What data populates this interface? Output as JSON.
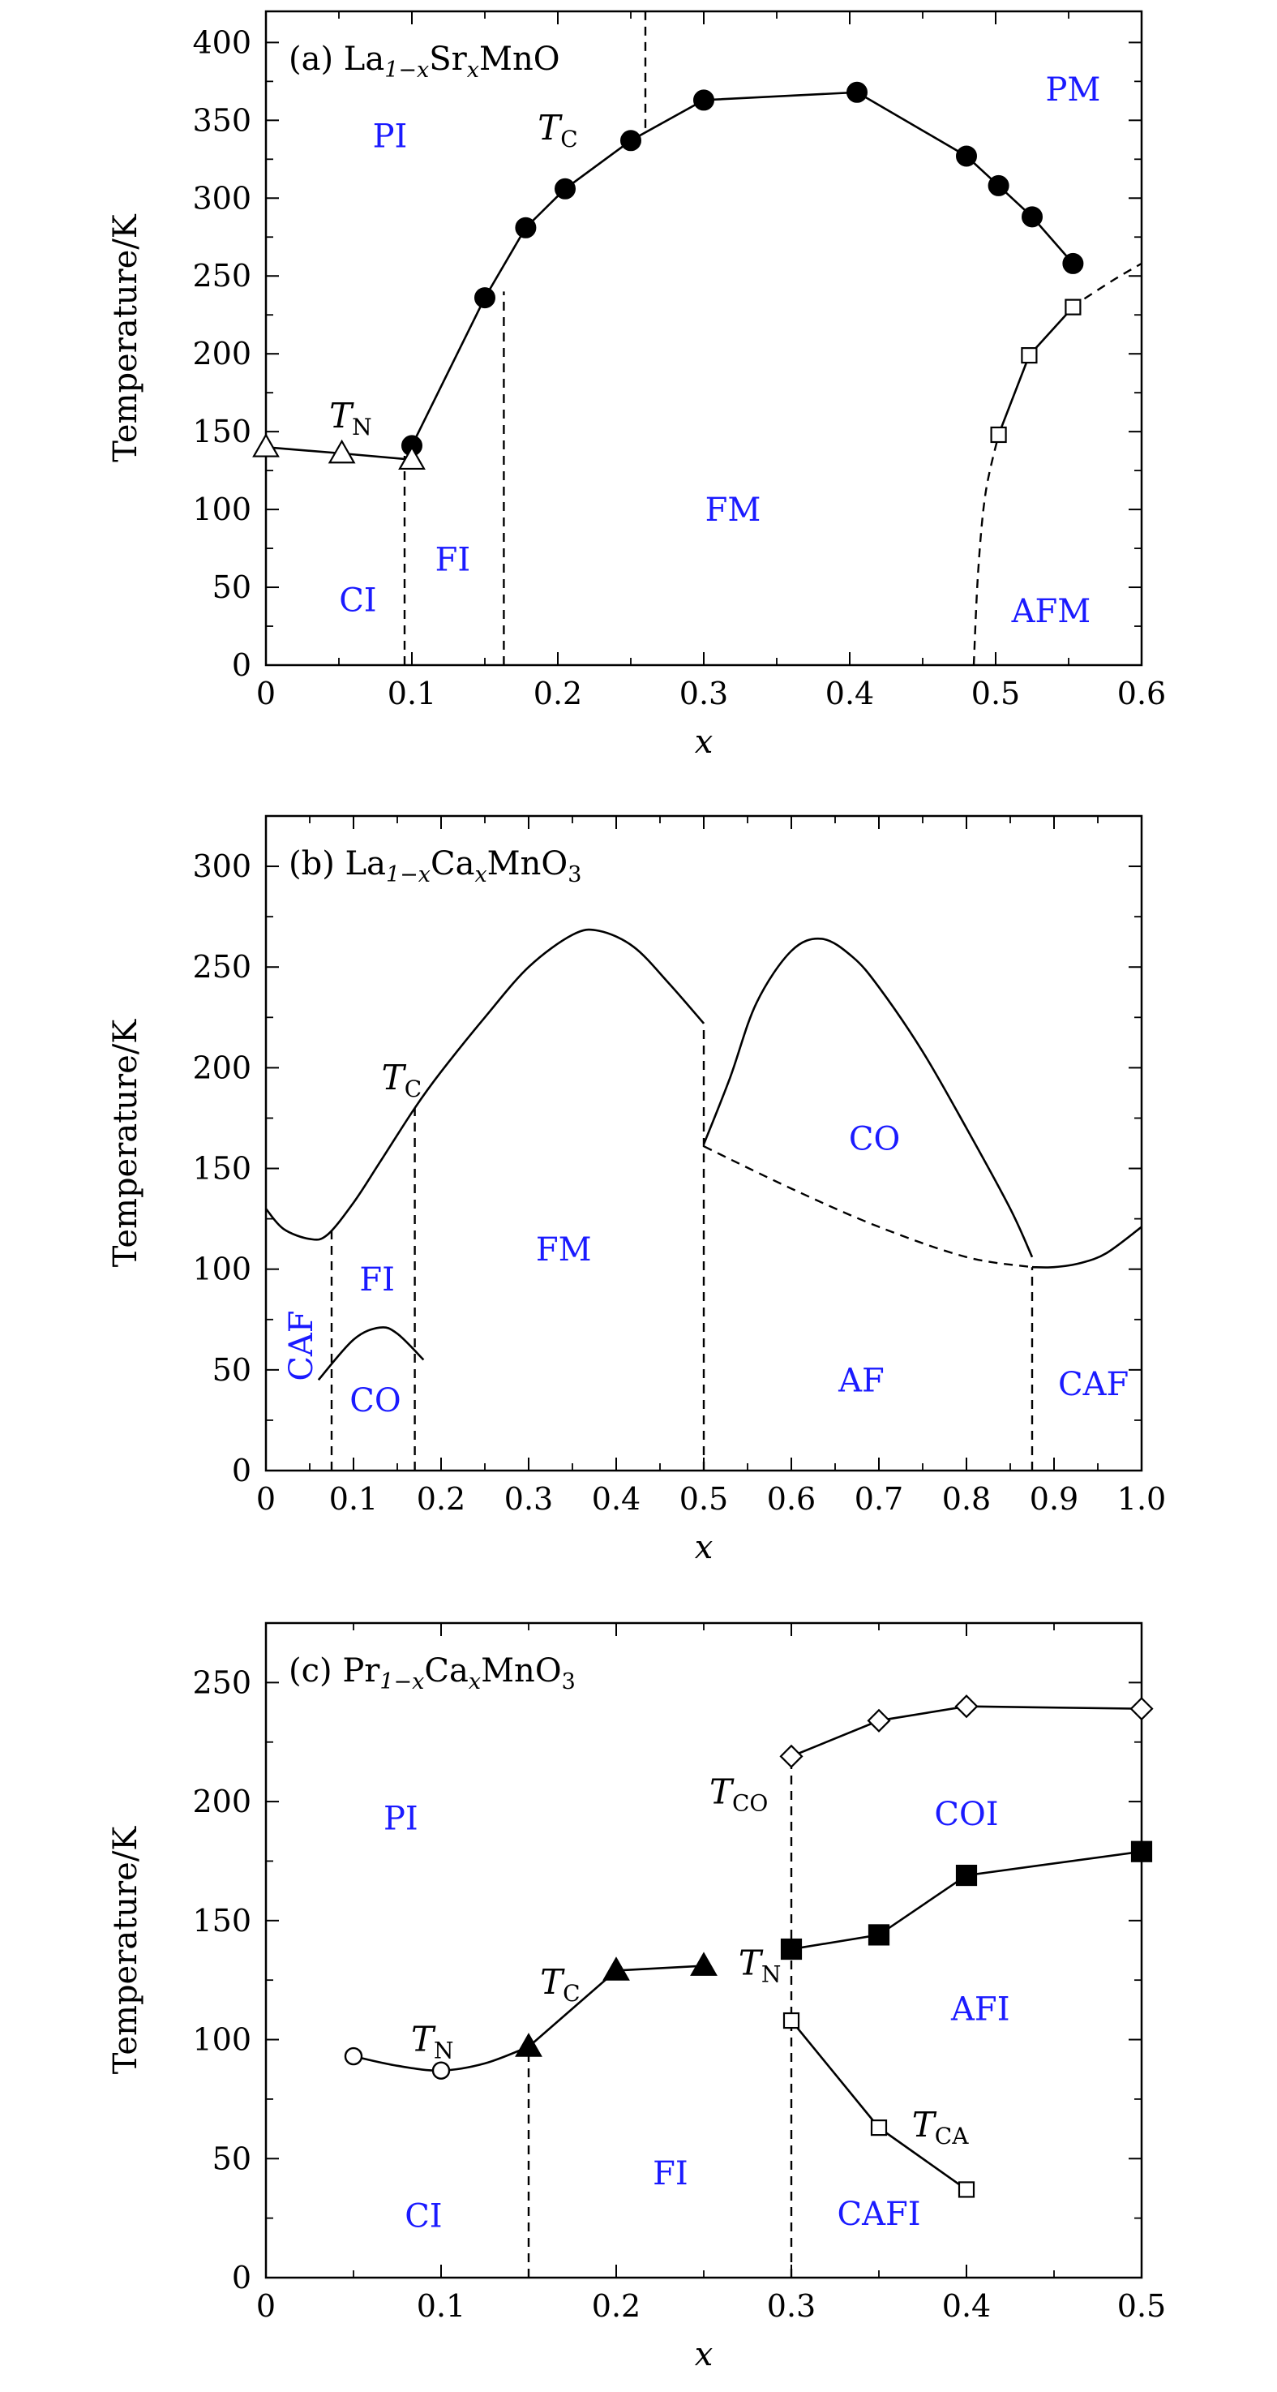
{
  "colors": {
    "axis": "#000000",
    "region_text": "#1a1aff",
    "line": "#000000",
    "background": "#ffffff"
  },
  "chart_data": [
    {
      "type": "line",
      "id": "a",
      "title": "(a) La1−xSrxMnO",
      "title_parts": {
        "prefix": "(a) La",
        "sub1": "1−x",
        "mid": "Sr",
        "sub2": "x",
        "suffix": "MnO"
      },
      "xlabel": "x",
      "ylabel": "Temperature/K",
      "xlim": [
        0,
        0.6
      ],
      "ylim": [
        0,
        420
      ],
      "xticks": [
        0,
        0.1,
        0.2,
        0.3,
        0.4,
        0.5,
        0.6
      ],
      "xtick_labels": [
        "0",
        "0.1",
        "0.2",
        "0.3",
        "0.4",
        "0.5",
        "0.6"
      ],
      "yticks": [
        0,
        50,
        100,
        150,
        200,
        250,
        300,
        350,
        400
      ],
      "ytick_labels": [
        "0",
        "50",
        "100",
        "150",
        "200",
        "250",
        "300",
        "350",
        "400"
      ],
      "series": [
        {
          "marker": "filled-circle",
          "connected": true,
          "x": [
            0.1,
            0.15,
            0.178,
            0.205,
            0.25,
            0.3,
            0.405,
            0.48,
            0.502,
            0.525,
            0.553
          ],
          "y": [
            141,
            236,
            281,
            306,
            337,
            363,
            368,
            327,
            308,
            288,
            258
          ]
        },
        {
          "marker": "open-triangle",
          "connected": true,
          "x": [
            0,
            0.052,
            0.1
          ],
          "y": [
            140,
            136,
            132
          ]
        },
        {
          "marker": "open-square",
          "connected": true,
          "x": [
            0.502,
            0.523,
            0.553
          ],
          "y": [
            148,
            199,
            230
          ]
        }
      ],
      "dashed_curves": [
        {
          "x": [
            0.552,
            0.58,
            0.6
          ],
          "y": [
            230,
            247,
            258
          ]
        },
        {
          "x": [
            0.485,
            0.488,
            0.493,
            0.502
          ],
          "y": [
            0,
            60,
            110,
            148
          ]
        }
      ],
      "dashed_vlines": [
        {
          "x": 0.095,
          "y0": 0,
          "y1": 140
        },
        {
          "x": 0.163,
          "y0": 0,
          "y1": 240
        },
        {
          "x": 0.26,
          "y0": 345,
          "y1": 420
        }
      ],
      "regions": [
        {
          "label": "PI",
          "x": 0.085,
          "y": 340
        },
        {
          "label": "PM",
          "x": 0.553,
          "y": 370
        },
        {
          "label": "FM",
          "x": 0.32,
          "y": 100
        },
        {
          "label": "FI",
          "x": 0.128,
          "y": 68
        },
        {
          "label": "CI",
          "x": 0.063,
          "y": 42
        },
        {
          "label": "AFM",
          "x": 0.538,
          "y": 35
        }
      ],
      "annotations": [
        {
          "main": "T",
          "sub": "C",
          "x": 0.2,
          "y": 345
        },
        {
          "main": "T",
          "sub": "N",
          "x": 0.058,
          "y": 160
        }
      ]
    },
    {
      "type": "line",
      "id": "b",
      "title": "(b) La1−xCaxMnO3",
      "title_parts": {
        "prefix": "(b) La",
        "sub1": "1−x",
        "mid": "Ca",
        "sub2": "x",
        "suffix": "MnO",
        "sub3": "3"
      },
      "xlabel": "x",
      "ylabel": "Temperature/K",
      "xlim": [
        0,
        1.0
      ],
      "ylim": [
        0,
        325
      ],
      "xticks": [
        0,
        0.1,
        0.2,
        0.3,
        0.4,
        0.5,
        0.6,
        0.7,
        0.8,
        0.9,
        1.0
      ],
      "xtick_labels": [
        "0",
        "0.1",
        "0.2",
        "0.3",
        "0.4",
        "0.5",
        "0.6",
        "0.7",
        "0.8",
        "0.9",
        "1.0"
      ],
      "yticks": [
        0,
        50,
        100,
        150,
        200,
        250,
        300
      ],
      "ytick_labels": [
        "0",
        "50",
        "100",
        "150",
        "200",
        "250",
        "300"
      ],
      "series": [],
      "solid_curves": [
        {
          "x": [
            0,
            0.02,
            0.05,
            0.07,
            0.1,
            0.13,
            0.17,
            0.2,
            0.25,
            0.3,
            0.35,
            0.38,
            0.42,
            0.46,
            0.5
          ],
          "y": [
            130,
            120,
            115,
            117,
            133,
            153,
            180,
            198,
            225,
            250,
            266,
            268,
            260,
            242,
            222
          ]
        },
        {
          "x": [
            0.5,
            0.53,
            0.56,
            0.6,
            0.635,
            0.67,
            0.7,
            0.75,
            0.8,
            0.85,
            0.875
          ],
          "y": [
            162,
            195,
            232,
            258,
            264,
            255,
            240,
            208,
            170,
            130,
            106
          ]
        },
        {
          "x": [
            0.875,
            0.9,
            0.93,
            0.96,
            1.0
          ],
          "y": [
            101,
            101,
            103,
            108,
            121
          ]
        },
        {
          "x": [
            0.06,
            0.1,
            0.13,
            0.15,
            0.18
          ],
          "y": [
            45,
            65,
            71,
            68,
            55
          ]
        }
      ],
      "dashed_curves": [
        {
          "x": [
            0.5,
            0.6,
            0.7,
            0.8,
            0.875
          ],
          "y": [
            161,
            140,
            121,
            106,
            101
          ]
        }
      ],
      "dashed_vlines": [
        {
          "x": 0.075,
          "y0": 0,
          "y1": 120
        },
        {
          "x": 0.17,
          "y0": 0,
          "y1": 180
        },
        {
          "x": 0.5,
          "y0": 0,
          "y1": 222
        },
        {
          "x": 0.875,
          "y0": 0,
          "y1": 101
        }
      ],
      "regions": [
        {
          "label": "CO",
          "x": 0.695,
          "y": 165
        },
        {
          "label": "FM",
          "x": 0.34,
          "y": 110
        },
        {
          "label": "FI",
          "x": 0.127,
          "y": 95
        },
        {
          "label": "AF",
          "x": 0.68,
          "y": 45
        },
        {
          "label": "CAF",
          "x": 0.945,
          "y": 43
        },
        {
          "label": "CO",
          "x": 0.125,
          "y": 35
        }
      ],
      "vertical_regions": [
        {
          "label": "CAF",
          "x": 0.04,
          "y": 62
        }
      ],
      "annotations": [
        {
          "main": "T",
          "sub": "C",
          "x": 0.155,
          "y": 195
        }
      ]
    },
    {
      "type": "line",
      "id": "c",
      "title": "(c) Pr1−xCaxMnO3",
      "title_parts": {
        "prefix": "(c) Pr",
        "sub1": "1−x",
        "mid": "Ca",
        "sub2": "x",
        "suffix": "MnO",
        "sub3": "3"
      },
      "xlabel": "x",
      "ylabel": "Temperature/K",
      "xlim": [
        0,
        0.5
      ],
      "ylim": [
        0,
        275
      ],
      "xticks": [
        0,
        0.1,
        0.2,
        0.3,
        0.4,
        0.5
      ],
      "xtick_labels": [
        "0",
        "0.1",
        "0.2",
        "0.3",
        "0.4",
        "0.5"
      ],
      "yticks": [
        0,
        50,
        100,
        150,
        200,
        250
      ],
      "ytick_labels": [
        "0",
        "50",
        "100",
        "150",
        "200",
        "250"
      ],
      "series": [
        {
          "marker": "open-diamond",
          "connected": true,
          "x": [
            0.3,
            0.35,
            0.4,
            0.5
          ],
          "y": [
            219,
            234,
            240,
            239
          ]
        },
        {
          "marker": "filled-square",
          "connected": true,
          "x": [
            0.3,
            0.35,
            0.4,
            0.5
          ],
          "y": [
            138,
            144,
            169,
            179
          ]
        },
        {
          "marker": "filled-triangle",
          "connected": true,
          "x": [
            0.15,
            0.2,
            0.25
          ],
          "y": [
            97,
            129,
            131
          ]
        },
        {
          "marker": "open-square",
          "connected": true,
          "x": [
            0.3,
            0.35,
            0.4
          ],
          "y": [
            108,
            63,
            37
          ]
        },
        {
          "marker": "open-circle",
          "connected": false,
          "x": [
            0.05,
            0.1
          ],
          "y": [
            93,
            87
          ]
        }
      ],
      "solid_curves": [
        {
          "x": [
            0.05,
            0.075,
            0.1,
            0.125,
            0.15
          ],
          "y": [
            93,
            89,
            87,
            90,
            97
          ]
        }
      ],
      "dashed_vlines": [
        {
          "x": 0.15,
          "y0": 0,
          "y1": 97
        },
        {
          "x": 0.3,
          "y0": 0,
          "y1": 219
        }
      ],
      "regions": [
        {
          "label": "PI",
          "x": 0.077,
          "y": 193
        },
        {
          "label": "COI",
          "x": 0.4,
          "y": 195
        },
        {
          "label": "AFI",
          "x": 0.408,
          "y": 113
        },
        {
          "label": "FI",
          "x": 0.231,
          "y": 44
        },
        {
          "label": "CI",
          "x": 0.09,
          "y": 26
        },
        {
          "label": "CAFI",
          "x": 0.35,
          "y": 27
        }
      ],
      "annotations": [
        {
          "main": "T",
          "sub": "CO",
          "x": 0.27,
          "y": 204
        },
        {
          "main": "T",
          "sub": "N",
          "x": 0.282,
          "y": 132
        },
        {
          "main": "T",
          "sub": "C",
          "x": 0.168,
          "y": 124
        },
        {
          "main": "T",
          "sub": "N",
          "x": 0.095,
          "y": 100
        },
        {
          "main": "T",
          "sub": "CA",
          "x": 0.385,
          "y": 64
        }
      ]
    }
  ]
}
